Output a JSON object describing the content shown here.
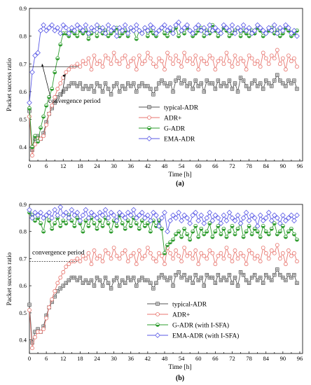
{
  "chart_data": [
    {
      "type": "line",
      "panel_label": "(a)",
      "xlabel": "Time [h]",
      "ylabel": "Packet success ratio",
      "xlim": [
        0,
        97
      ],
      "ylim": [
        0.35,
        0.9
      ],
      "xticks": [
        0,
        3,
        6,
        9,
        12,
        15,
        18,
        21,
        24,
        27,
        30,
        33,
        36,
        39,
        42,
        45,
        48,
        51,
        54,
        57,
        60,
        63,
        66,
        69,
        72,
        75,
        78,
        81,
        84,
        87,
        90,
        93,
        96
      ],
      "xtick_labels": [
        "0",
        "",
        "6",
        "",
        "12",
        "",
        "18",
        "",
        "24",
        "",
        "30",
        "",
        "36",
        "",
        "42",
        "",
        "48",
        "",
        "54",
        "",
        "60",
        "",
        "66",
        "",
        "72",
        "",
        "78",
        "",
        "84",
        "",
        "90",
        "",
        "96"
      ],
      "yticks": [
        0.4,
        0.5,
        0.6,
        0.7,
        0.8,
        0.9
      ],
      "ytick_labels": [
        "0.4",
        "0.5",
        "0.6",
        "0.7",
        "0.8",
        "0.9"
      ],
      "grid": false,
      "legend_position": "lower-right",
      "annotation": {
        "text": "convergence period",
        "y": 0.69,
        "arrow_from_x": 12,
        "arrow_to_x": 6
      },
      "series": [
        {
          "name": "typical-ADR",
          "color": "#555555",
          "marker": "square-plus",
          "values": [
            0.53,
            0.39,
            0.43,
            0.44,
            0.43,
            0.45,
            0.49,
            0.52,
            0.54,
            0.56,
            0.58,
            0.59,
            0.6,
            0.61,
            0.62,
            0.63,
            0.63,
            0.62,
            0.63,
            0.61,
            0.62,
            0.61,
            0.62,
            0.6,
            0.63,
            0.62,
            0.6,
            0.63,
            0.61,
            0.59,
            0.62,
            0.63,
            0.6,
            0.62,
            0.61,
            0.63,
            0.62,
            0.63,
            0.6,
            0.62,
            0.63,
            0.62,
            0.62,
            0.61,
            0.59,
            0.61,
            0.63,
            0.64,
            0.63,
            0.62,
            0.63,
            0.6,
            0.64,
            0.65,
            0.63,
            0.64,
            0.62,
            0.63,
            0.61,
            0.64,
            0.62,
            0.63,
            0.6,
            0.64,
            0.63,
            0.63,
            0.61,
            0.64,
            0.62,
            0.63,
            0.62,
            0.64,
            0.61,
            0.63,
            0.6,
            0.65,
            0.64,
            0.62,
            0.61,
            0.63,
            0.64,
            0.62,
            0.63,
            0.61,
            0.64,
            0.63,
            0.62,
            0.64,
            0.66,
            0.64,
            0.63,
            0.62,
            0.64,
            0.63,
            0.64,
            0.61
          ]
        },
        {
          "name": "ADR+",
          "color": "#e8766f",
          "marker": "circle",
          "values": [
            0.51,
            0.37,
            0.41,
            0.43,
            0.43,
            0.44,
            0.48,
            0.52,
            0.55,
            0.58,
            0.61,
            0.63,
            0.65,
            0.67,
            0.68,
            0.69,
            0.69,
            0.7,
            0.69,
            0.71,
            0.7,
            0.72,
            0.68,
            0.73,
            0.7,
            0.71,
            0.69,
            0.73,
            0.72,
            0.7,
            0.74,
            0.71,
            0.7,
            0.72,
            0.73,
            0.69,
            0.71,
            0.72,
            0.68,
            0.73,
            0.7,
            0.71,
            0.74,
            0.72,
            0.7,
            0.69,
            0.72,
            0.71,
            0.68,
            0.74,
            0.72,
            0.7,
            0.73,
            0.71,
            0.69,
            0.74,
            0.71,
            0.72,
            0.7,
            0.73,
            0.68,
            0.72,
            0.71,
            0.7,
            0.73,
            0.72,
            0.68,
            0.71,
            0.72,
            0.7,
            0.74,
            0.71,
            0.69,
            0.73,
            0.7,
            0.72,
            0.71,
            0.68,
            0.73,
            0.72,
            0.7,
            0.71,
            0.69,
            0.74,
            0.72,
            0.7,
            0.73,
            0.72,
            0.75,
            0.7,
            0.72,
            0.68,
            0.73,
            0.71,
            0.72,
            0.69
          ]
        },
        {
          "name": "G-ADR",
          "color": "#2e9c2e",
          "marker": "half-circle",
          "values": [
            0.54,
            0.4,
            0.44,
            0.42,
            0.47,
            0.51,
            0.55,
            0.58,
            0.61,
            0.67,
            0.72,
            0.77,
            0.81,
            0.81,
            0.8,
            0.82,
            0.81,
            0.8,
            0.82,
            0.81,
            0.82,
            0.79,
            0.81,
            0.82,
            0.8,
            0.83,
            0.81,
            0.82,
            0.8,
            0.81,
            0.82,
            0.83,
            0.8,
            0.81,
            0.82,
            0.8,
            0.83,
            0.82,
            0.79,
            0.82,
            0.81,
            0.83,
            0.8,
            0.82,
            0.81,
            0.8,
            0.82,
            0.83,
            0.81,
            0.8,
            0.82,
            0.81,
            0.83,
            0.8,
            0.82,
            0.81,
            0.83,
            0.82,
            0.8,
            0.81,
            0.82,
            0.83,
            0.8,
            0.82,
            0.81,
            0.84,
            0.82,
            0.8,
            0.81,
            0.83,
            0.82,
            0.8,
            0.81,
            0.82,
            0.83,
            0.8,
            0.82,
            0.81,
            0.8,
            0.82,
            0.81,
            0.83,
            0.82,
            0.8,
            0.81,
            0.82,
            0.83,
            0.81,
            0.82,
            0.8,
            0.81,
            0.83,
            0.82,
            0.8,
            0.81,
            0.82
          ]
        },
        {
          "name": "EMA-ADR",
          "color": "#5a5ae6",
          "marker": "diamond",
          "values": [
            0.56,
            0.67,
            0.73,
            0.74,
            0.82,
            0.84,
            0.82,
            0.83,
            0.84,
            0.82,
            0.83,
            0.81,
            0.84,
            0.83,
            0.81,
            0.83,
            0.82,
            0.84,
            0.83,
            0.82,
            0.84,
            0.81,
            0.83,
            0.82,
            0.84,
            0.82,
            0.83,
            0.81,
            0.84,
            0.82,
            0.83,
            0.8,
            0.83,
            0.82,
            0.84,
            0.81,
            0.83,
            0.82,
            0.84,
            0.82,
            0.81,
            0.83,
            0.82,
            0.84,
            0.83,
            0.81,
            0.82,
            0.83,
            0.84,
            0.82,
            0.83,
            0.81,
            0.84,
            0.85,
            0.82,
            0.83,
            0.84,
            0.82,
            0.81,
            0.83,
            0.84,
            0.82,
            0.83,
            0.81,
            0.84,
            0.82,
            0.83,
            0.82,
            0.81,
            0.84,
            0.83,
            0.82,
            0.84,
            0.81,
            0.83,
            0.82,
            0.84,
            0.82,
            0.83,
            0.81,
            0.82,
            0.84,
            0.83,
            0.82,
            0.81,
            0.83,
            0.82,
            0.84,
            0.81,
            0.83,
            0.82,
            0.84,
            0.83,
            0.81,
            0.82,
            0.8
          ]
        }
      ]
    },
    {
      "type": "line",
      "panel_label": "(b)",
      "xlabel": "Time [h]",
      "ylabel": "Packet success ratio",
      "xlim": [
        0,
        97
      ],
      "ylim": [
        0.35,
        0.9
      ],
      "xticks": [
        0,
        3,
        6,
        9,
        12,
        15,
        18,
        21,
        24,
        27,
        30,
        33,
        36,
        39,
        42,
        45,
        48,
        51,
        54,
        57,
        60,
        63,
        66,
        69,
        72,
        75,
        78,
        81,
        84,
        87,
        90,
        93,
        96
      ],
      "xtick_labels": [
        "0",
        "",
        "6",
        "",
        "12",
        "",
        "18",
        "",
        "24",
        "",
        "30",
        "",
        "36",
        "",
        "42",
        "",
        "48",
        "",
        "54",
        "",
        "60",
        "",
        "66",
        "",
        "72",
        "",
        "78",
        "",
        "84",
        "",
        "90",
        "",
        "96"
      ],
      "yticks": [
        0.4,
        0.5,
        0.6,
        0.7,
        0.8,
        0.9
      ],
      "ytick_labels": [
        "0.4",
        "0.5",
        "0.6",
        "0.7",
        "0.8",
        "0.9"
      ],
      "grid": false,
      "legend_position": "lower-right",
      "annotation": {
        "text": "convergence period",
        "y": 0.69,
        "line_from_x": 0,
        "line_to_x": 18
      },
      "series": [
        {
          "name": "typical-ADR",
          "color": "#555555",
          "marker": "square-plus",
          "values": [
            0.53,
            0.39,
            0.43,
            0.44,
            0.43,
            0.45,
            0.49,
            0.52,
            0.54,
            0.56,
            0.58,
            0.59,
            0.6,
            0.61,
            0.62,
            0.63,
            0.63,
            0.62,
            0.63,
            0.61,
            0.62,
            0.61,
            0.62,
            0.6,
            0.63,
            0.62,
            0.6,
            0.63,
            0.61,
            0.59,
            0.62,
            0.63,
            0.6,
            0.62,
            0.61,
            0.63,
            0.62,
            0.63,
            0.6,
            0.62,
            0.63,
            0.62,
            0.62,
            0.61,
            0.59,
            0.61,
            0.63,
            0.64,
            0.63,
            0.62,
            0.63,
            0.6,
            0.64,
            0.65,
            0.63,
            0.64,
            0.62,
            0.63,
            0.61,
            0.64,
            0.62,
            0.63,
            0.6,
            0.64,
            0.63,
            0.63,
            0.61,
            0.64,
            0.62,
            0.63,
            0.62,
            0.64,
            0.61,
            0.63,
            0.6,
            0.65,
            0.64,
            0.62,
            0.61,
            0.63,
            0.64,
            0.62,
            0.63,
            0.61,
            0.64,
            0.63,
            0.62,
            0.64,
            0.66,
            0.64,
            0.63,
            0.62,
            0.64,
            0.63,
            0.64,
            0.61
          ]
        },
        {
          "name": "ADR+",
          "color": "#e8766f",
          "marker": "circle",
          "values": [
            0.51,
            0.37,
            0.41,
            0.43,
            0.43,
            0.44,
            0.48,
            0.52,
            0.55,
            0.58,
            0.61,
            0.63,
            0.65,
            0.67,
            0.68,
            0.69,
            0.69,
            0.7,
            0.69,
            0.71,
            0.7,
            0.72,
            0.68,
            0.73,
            0.7,
            0.71,
            0.69,
            0.73,
            0.72,
            0.7,
            0.74,
            0.71,
            0.7,
            0.72,
            0.73,
            0.69,
            0.71,
            0.72,
            0.68,
            0.73,
            0.7,
            0.71,
            0.74,
            0.72,
            0.7,
            0.69,
            0.72,
            0.71,
            0.68,
            0.74,
            0.72,
            0.7,
            0.73,
            0.71,
            0.69,
            0.74,
            0.71,
            0.72,
            0.7,
            0.73,
            0.68,
            0.72,
            0.71,
            0.7,
            0.73,
            0.72,
            0.68,
            0.71,
            0.72,
            0.7,
            0.74,
            0.71,
            0.69,
            0.73,
            0.7,
            0.72,
            0.71,
            0.68,
            0.73,
            0.72,
            0.7,
            0.71,
            0.69,
            0.74,
            0.72,
            0.7,
            0.73,
            0.72,
            0.75,
            0.7,
            0.72,
            0.68,
            0.73,
            0.71,
            0.72,
            0.69
          ]
        },
        {
          "name": "G-ADR (with I-SFA)",
          "color": "#2e9c2e",
          "marker": "half-circle",
          "values": [
            0.87,
            0.86,
            0.84,
            0.85,
            0.83,
            0.8,
            0.86,
            0.84,
            0.81,
            0.83,
            0.85,
            0.82,
            0.84,
            0.83,
            0.86,
            0.84,
            0.82,
            0.85,
            0.83,
            0.8,
            0.84,
            0.82,
            0.85,
            0.83,
            0.81,
            0.84,
            0.82,
            0.85,
            0.83,
            0.8,
            0.84,
            0.82,
            0.86,
            0.83,
            0.81,
            0.84,
            0.82,
            0.85,
            0.83,
            0.81,
            0.84,
            0.82,
            0.83,
            0.8,
            0.84,
            0.82,
            0.84,
            0.81,
            0.72,
            0.75,
            0.76,
            0.77,
            0.79,
            0.8,
            0.78,
            0.81,
            0.79,
            0.77,
            0.8,
            0.82,
            0.78,
            0.81,
            0.79,
            0.8,
            0.83,
            0.78,
            0.8,
            0.82,
            0.79,
            0.81,
            0.78,
            0.8,
            0.82,
            0.79,
            0.81,
            0.83,
            0.78,
            0.8,
            0.82,
            0.79,
            0.81,
            0.8,
            0.78,
            0.82,
            0.8,
            0.79,
            0.81,
            0.83,
            0.79,
            0.8,
            0.82,
            0.78,
            0.8,
            0.81,
            0.79,
            0.77
          ]
        },
        {
          "name": "EMA-ADR (with I-SFA)",
          "color": "#5a5ae6",
          "marker": "diamond",
          "values": [
            0.88,
            0.85,
            0.87,
            0.86,
            0.87,
            0.85,
            0.86,
            0.87,
            0.85,
            0.88,
            0.86,
            0.89,
            0.86,
            0.87,
            0.85,
            0.88,
            0.86,
            0.87,
            0.84,
            0.86,
            0.88,
            0.85,
            0.87,
            0.86,
            0.85,
            0.87,
            0.86,
            0.88,
            0.85,
            0.87,
            0.86,
            0.84,
            0.87,
            0.86,
            0.85,
            0.87,
            0.86,
            0.88,
            0.85,
            0.86,
            0.87,
            0.85,
            0.86,
            0.84,
            0.87,
            0.86,
            0.82,
            0.85,
            0.87,
            0.8,
            0.84,
            0.86,
            0.85,
            0.87,
            0.84,
            0.86,
            0.85,
            0.83,
            0.86,
            0.87,
            0.84,
            0.86,
            0.83,
            0.85,
            0.87,
            0.84,
            0.86,
            0.85,
            0.83,
            0.86,
            0.84,
            0.87,
            0.85,
            0.84,
            0.86,
            0.83,
            0.85,
            0.87,
            0.84,
            0.86,
            0.85,
            0.82,
            0.86,
            0.84,
            0.85,
            0.87,
            0.84,
            0.86,
            0.85,
            0.83,
            0.86,
            0.84,
            0.85,
            0.86,
            0.84,
            0.86
          ]
        }
      ]
    }
  ]
}
